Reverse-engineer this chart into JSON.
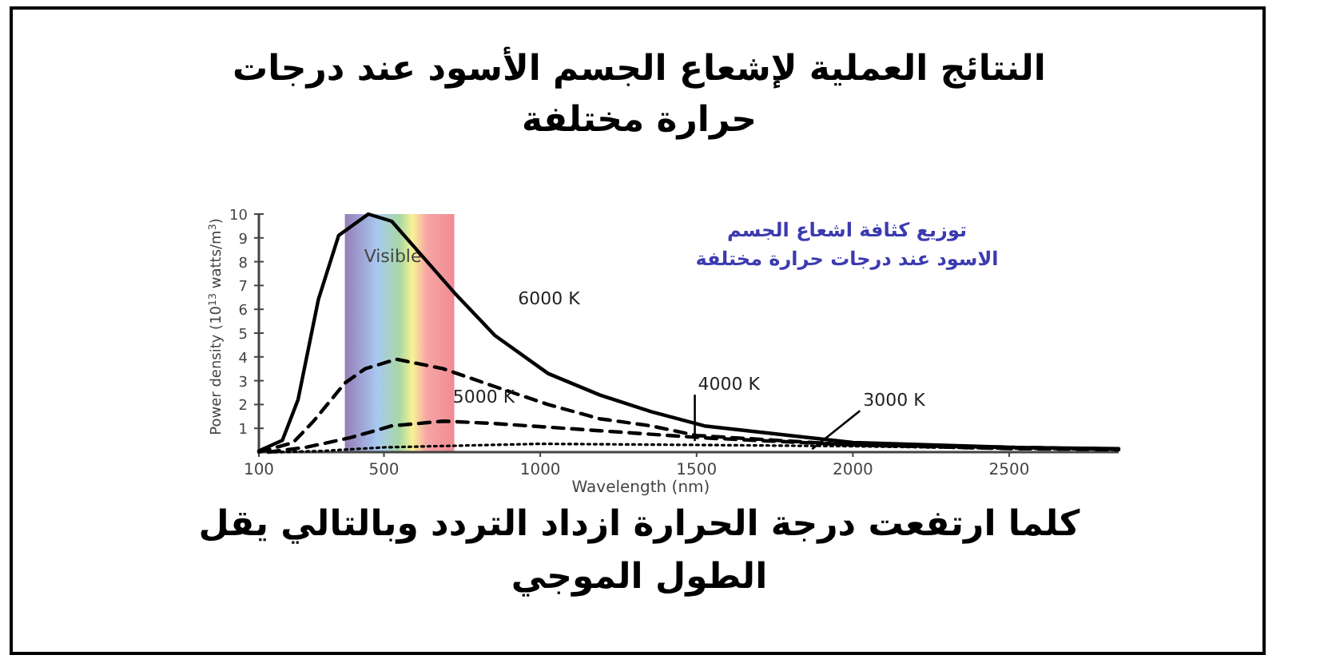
{
  "chart_data": {
    "type": "line",
    "title": "النتائج العملية لإشعاع الجسم الأسود عند درجات حرارة مختلفة",
    "subtitle": "توزيع كثافة اشعاع الجسم الاسود عند درجات حرارة مختلفة",
    "xlabel": "Wavelength (nm)",
    "ylabel": "Power density (10$^{13}$ watts/m$^{3}$)",
    "annotations": [
      "كلما ارتفعت درجة الحرارة ازداد التردد وبالتالي يقل الطول الموجي"
    ],
    "xlim": [
      100,
      2850
    ],
    "xticks": [
      100,
      500,
      1000,
      1500,
      2000,
      2500
    ],
    "ylim": [
      0,
      10
    ],
    "yticks": [
      1,
      2,
      3,
      4,
      5,
      6,
      7,
      8,
      9,
      10
    ],
    "grid": false,
    "bands": [
      {
        "axis": "x",
        "from": 375,
        "to": 725,
        "label": "Visible"
      }
    ],
    "series": [
      {
        "name": "6000 K",
        "color": "#000000",
        "line_style": "solid",
        "x": [
          100,
          175,
          225,
          290,
          355,
          450,
          525,
          625,
          725,
          855,
          1025,
          1190,
          1355,
          1525,
          2000,
          2500,
          2850
        ],
        "values": [
          0.05,
          0.5,
          2.2,
          6.4,
          9.1,
          10,
          9.7,
          8.2,
          6.7,
          4.9,
          3.3,
          2.4,
          1.7,
          1.1,
          0.4,
          0.2,
          0.15
        ]
      },
      {
        "name": "5000 K",
        "color": "#000000",
        "line_style": "dashed",
        "x": [
          100,
          210,
          275,
          375,
          440,
          540,
          690,
          855,
          1025,
          1190,
          1355,
          1500,
          2000,
          2500,
          2850
        ],
        "values": [
          0,
          0.4,
          1.3,
          2.9,
          3.5,
          3.9,
          3.5,
          2.75,
          2,
          1.4,
          1.1,
          0.7,
          0.3,
          0.15,
          0.1
        ]
      },
      {
        "name": "4000 K",
        "color": "#000000",
        "line_style": "dashed",
        "x": [
          130,
          250,
          390,
          525,
          690,
          855,
          1190,
          1525,
          2000,
          2500,
          2850
        ],
        "values": [
          0,
          0.2,
          0.6,
          1.1,
          1.3,
          1.2,
          0.9,
          0.6,
          0.3,
          0.2,
          0.12
        ]
      },
      {
        "name": "3000 K",
        "color": "#000000",
        "line_style": "dotted",
        "x": [
          150,
          300,
          500,
          1000,
          1500,
          2000,
          2500,
          2850
        ],
        "values": [
          0,
          0.05,
          0.2,
          0.35,
          0.3,
          0.25,
          0.15,
          0.1
        ]
      }
    ]
  }
}
